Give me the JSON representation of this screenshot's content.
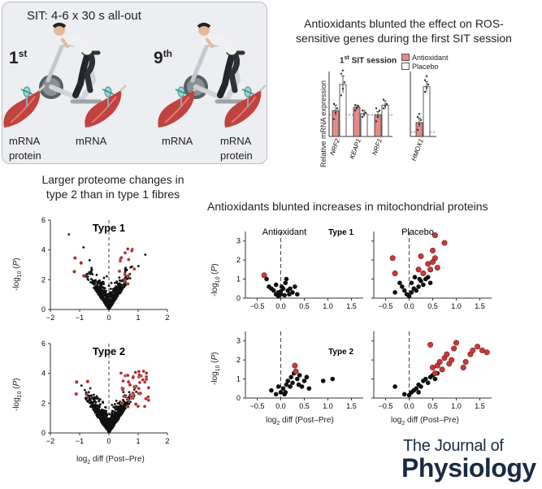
{
  "protocol": {
    "title": "SIT: 4-6 x 30 s all-out",
    "sessions": [
      {
        "num": "1",
        "sup": "st",
        "labels_left": [
          "mRNA",
          "protein"
        ],
        "labels_right": [
          "mRNA"
        ]
      },
      {
        "num": "9",
        "sup": "th",
        "labels_left": [
          "mRNA"
        ],
        "labels_right": [
          "mRNA",
          "protein"
        ]
      }
    ]
  },
  "mrna_panel": {
    "heading_line1": "Antioxidants blunted the effect on ROS-",
    "heading_line2": "sensitive genes during the first SIT session",
    "session_num": "1",
    "session_sup": "st",
    "session_rest": " SIT session",
    "ylabel": "Relative mRNA expression",
    "legend": [
      {
        "label": "Antioxidant",
        "color": "#e58a86"
      },
      {
        "label": "Placebo",
        "color": "#ffffff"
      }
    ]
  },
  "proteome_panel": {
    "heading_line1": "Larger proteome changes in",
    "heading_line2": "type 2 than in type 1 fibres",
    "xlabel_main": "log",
    "xlabel_sub": "2",
    "xlabel_rest": " diff (Post–Pre)",
    "ylabel_main": "-log",
    "ylabel_sub": "10",
    "ylabel_rest": " (",
    "ylabel_p": "P",
    "ylabel_end": ")"
  },
  "mito_panel": {
    "heading": "Antioxidants blunted increases in mitochondrial proteins",
    "xlabel_main": "log",
    "xlabel_sub": "2",
    "xlabel_rest": " diff (Post–Pre)"
  },
  "journal": {
    "line1": "The Journal of",
    "line2": "Physiology"
  },
  "colors": {
    "significant": "#b02a2a",
    "nonsignificant": "#111111",
    "antioxidant_bar": "#e58a86"
  },
  "chart_data": [
    {
      "type": "bar",
      "categories": [
        "NRF2",
        "KEAP1",
        "NRF1"
      ],
      "series": [
        {
          "name": "Antioxidant",
          "values": [
            1.2,
            1.35,
            1.0
          ],
          "errors": [
            0.25,
            0.1,
            0.15
          ]
        },
        {
          "name": "Placebo",
          "values": [
            2.4,
            1.05,
            1.45
          ],
          "errors": [
            0.4,
            0.15,
            0.2
          ]
        }
      ],
      "points": {
        "Antioxidant": [
          [
            0.8,
            1.1,
            1.3,
            1.5
          ],
          [
            1.2,
            1.3,
            1.4,
            1.45
          ],
          [
            0.7,
            0.9,
            1.2,
            1.3
          ]
        ],
        "Placebo": [
          [
            1.9,
            2.2,
            2.5,
            2.9
          ],
          [
            0.9,
            1.0,
            1.1,
            1.2
          ],
          [
            1.3,
            1.4,
            1.5,
            1.7
          ]
        ]
      },
      "significance": [
        "*",
        "",
        ""
      ],
      "ylim": [
        0,
        3
      ]
    },
    {
      "type": "bar",
      "categories": [
        "HMOX1"
      ],
      "series": [
        {
          "name": "Antioxidant",
          "values": [
            3.2
          ],
          "errors": [
            1.0
          ]
        },
        {
          "name": "Placebo",
          "values": [
            11.5
          ],
          "errors": [
            1.2
          ]
        }
      ],
      "points": {
        "Antioxidant": [
          [
            1.5,
            2.8,
            3.8,
            4.5,
            5.2
          ]
        ],
        "Placebo": [
          [
            10.3,
            11.2,
            12.0,
            13.0
          ]
        ]
      },
      "significance": [
        "*"
      ],
      "ylim": [
        0,
        15
      ]
    },
    {
      "type": "scatter",
      "title": "Type 1",
      "xlim": [
        -2,
        2
      ],
      "ylim": [
        0,
        6
      ],
      "xticks": [
        -2,
        -1,
        0,
        1,
        2
      ],
      "yticks": [
        0,
        2,
        4,
        6
      ]
    },
    {
      "type": "scatter",
      "title": "Type 2",
      "xlim": [
        -2,
        2
      ],
      "ylim": [
        0,
        6
      ],
      "xticks": [
        -2,
        -1,
        0,
        1,
        2
      ],
      "yticks": [
        0,
        2,
        4,
        6
      ]
    },
    {
      "type": "scatter",
      "title": "Antioxidant",
      "subtitle": "Type 1",
      "xlim": [
        -0.75,
        1.75
      ],
      "ylim": [
        0,
        3.5
      ],
      "xticks": [
        -0.5,
        0.0,
        0.5,
        1.0,
        1.5
      ],
      "yticks": [
        0,
        1,
        2,
        3
      ],
      "significant": [
        [
          -0.35,
          1.2
        ]
      ],
      "nonsignificant": [
        [
          -0.3,
          1.0
        ],
        [
          -0.25,
          0.6
        ],
        [
          -0.2,
          0.5
        ],
        [
          -0.15,
          0.4
        ],
        [
          -0.1,
          0.7
        ],
        [
          -0.05,
          0.3
        ],
        [
          0.0,
          0.2
        ],
        [
          0.05,
          0.5
        ],
        [
          0.1,
          0.8
        ],
        [
          0.12,
          1.0
        ],
        [
          0.15,
          0.4
        ],
        [
          0.2,
          0.5
        ],
        [
          0.25,
          0.3
        ],
        [
          0.3,
          0.6
        ],
        [
          0.35,
          0.2
        ],
        [
          -0.05,
          0.1
        ],
        [
          0.0,
          0.35
        ],
        [
          0.08,
          0.15
        ],
        [
          -0.1,
          0.2
        ],
        [
          0.02,
          0.6
        ],
        [
          0.18,
          0.2
        ]
      ]
    },
    {
      "type": "scatter",
      "title": "Placebo",
      "xlim": [
        -0.75,
        1.75
      ],
      "ylim": [
        0,
        3.5
      ],
      "xticks": [
        -0.5,
        0.0,
        0.5,
        1.0,
        1.5
      ],
      "yticks": [
        0,
        1,
        2,
        3
      ],
      "significant": [
        [
          -0.35,
          2.1
        ],
        [
          -0.3,
          1.3
        ],
        [
          0.2,
          1.5
        ],
        [
          0.25,
          2.2
        ],
        [
          0.3,
          1.3
        ],
        [
          0.4,
          1.8
        ],
        [
          0.45,
          1.5
        ],
        [
          0.5,
          2.5
        ],
        [
          0.55,
          3.3
        ],
        [
          0.55,
          2.1
        ],
        [
          0.6,
          1.6
        ],
        [
          0.75,
          2.9
        ],
        [
          0.5,
          1.9
        ]
      ],
      "nonsignificant": [
        [
          -0.2,
          0.8
        ],
        [
          -0.1,
          0.4
        ],
        [
          -0.05,
          0.2
        ],
        [
          0.0,
          0.1
        ],
        [
          0.05,
          0.3
        ],
        [
          0.1,
          0.5
        ],
        [
          0.15,
          0.4
        ],
        [
          0.2,
          0.6
        ],
        [
          0.25,
          0.9
        ],
        [
          0.3,
          0.7
        ],
        [
          0.35,
          1.0
        ],
        [
          0.4,
          1.1
        ],
        [
          0.45,
          0.8
        ],
        [
          -0.3,
          0.3
        ],
        [
          -0.15,
          0.6
        ],
        [
          0.05,
          0.8
        ],
        [
          0.12,
          1.1
        ],
        [
          0.22,
          1.0
        ]
      ]
    },
    {
      "type": "scatter",
      "subtitle": "Type 2",
      "xlim": [
        -0.75,
        1.75
      ],
      "ylim": [
        0,
        3.5
      ],
      "xticks": [
        -0.5,
        0.0,
        0.5,
        1.0,
        1.5
      ],
      "yticks": [
        0,
        1,
        2,
        3
      ],
      "significant": [
        [
          0.3,
          1.7
        ],
        [
          0.32,
          1.4
        ]
      ],
      "nonsignificant": [
        [
          -0.2,
          0.4
        ],
        [
          -0.1,
          0.2
        ],
        [
          0.0,
          0.3
        ],
        [
          0.05,
          0.5
        ],
        [
          0.1,
          0.3
        ],
        [
          0.12,
          0.7
        ],
        [
          0.15,
          0.9
        ],
        [
          0.2,
          0.6
        ],
        [
          0.22,
          1.1
        ],
        [
          0.25,
          0.8
        ],
        [
          0.28,
          1.3
        ],
        [
          0.35,
          1.0
        ],
        [
          0.38,
          0.7
        ],
        [
          0.4,
          1.2
        ],
        [
          0.45,
          0.6
        ],
        [
          0.5,
          0.9
        ],
        [
          0.55,
          1.1
        ],
        [
          0.6,
          0.5
        ],
        [
          0.9,
          0.9
        ],
        [
          1.1,
          1.0
        ],
        [
          -0.05,
          0.6
        ],
        [
          0.08,
          0.2
        ]
      ]
    },
    {
      "type": "scatter",
      "xlim": [
        -0.75,
        1.75
      ],
      "ylim": [
        0,
        3.5
      ],
      "xticks": [
        -0.5,
        0.0,
        0.5,
        1.0,
        1.5
      ],
      "yticks": [
        0,
        1,
        2,
        3
      ],
      "significant": [
        [
          0.5,
          1.6
        ],
        [
          0.55,
          1.3
        ],
        [
          0.6,
          1.7
        ],
        [
          0.65,
          1.9
        ],
        [
          0.7,
          1.5
        ],
        [
          0.75,
          2.1
        ],
        [
          0.8,
          2.3
        ],
        [
          0.85,
          1.8
        ],
        [
          0.9,
          2.0
        ],
        [
          0.95,
          2.6
        ],
        [
          1.0,
          2.9
        ],
        [
          1.15,
          1.6
        ],
        [
          1.2,
          1.9
        ],
        [
          1.3,
          2.3
        ],
        [
          1.35,
          2.5
        ],
        [
          1.45,
          2.7
        ],
        [
          1.55,
          2.5
        ],
        [
          1.65,
          2.4
        ],
        [
          0.45,
          2.8
        ]
      ],
      "nonsignificant": [
        [
          -0.3,
          0.6
        ],
        [
          -0.1,
          0.2
        ],
        [
          0.0,
          0.15
        ],
        [
          0.05,
          0.3
        ],
        [
          0.1,
          0.4
        ],
        [
          0.15,
          0.5
        ],
        [
          0.2,
          0.7
        ],
        [
          0.25,
          0.6
        ],
        [
          0.3,
          0.9
        ],
        [
          0.35,
          1.0
        ],
        [
          0.4,
          0.8
        ],
        [
          0.45,
          1.1
        ],
        [
          0.5,
          1.2
        ],
        [
          0.55,
          1.0
        ],
        [
          0.6,
          1.3
        ],
        [
          0.2,
          0.3
        ]
      ]
    }
  ]
}
